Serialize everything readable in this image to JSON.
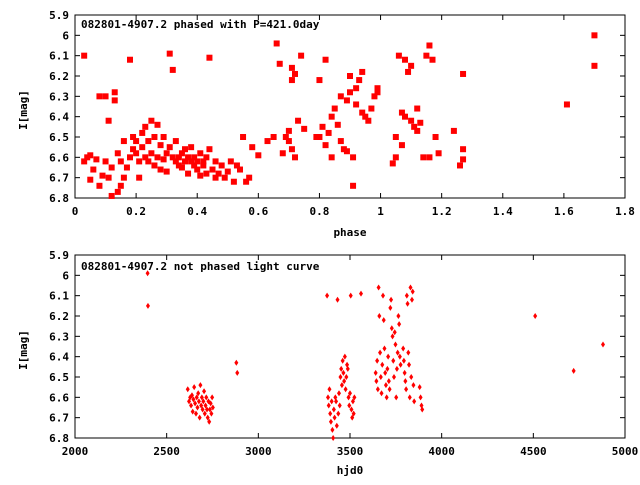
{
  "chart_data": [
    {
      "type": "scatter",
      "title": "082801-4907.2 phased with P=421.0day",
      "xlabel": "phase",
      "ylabel": "I[mag]",
      "xlim": [
        0,
        1.8
      ],
      "ylim": [
        6.8,
        5.9
      ],
      "y_inverted": true,
      "grid": false,
      "marker": "filled-square",
      "color": "#ff0000",
      "x_ticks": [
        "0",
        "0.2",
        "0.4",
        "0.6",
        "0.8",
        "1",
        "1.2",
        "1.4",
        "1.6",
        "1.8"
      ],
      "y_ticks": [
        "5.9",
        "6",
        "6.1",
        "6.2",
        "6.3",
        "6.4",
        "6.5",
        "6.6",
        "6.7",
        "6.8"
      ],
      "points": [
        [
          0.03,
          6.1
        ],
        [
          0.03,
          6.62
        ],
        [
          0.04,
          6.6
        ],
        [
          0.05,
          6.71
        ],
        [
          0.05,
          6.59
        ],
        [
          0.06,
          6.66
        ],
        [
          0.07,
          6.61
        ],
        [
          0.08,
          6.3
        ],
        [
          0.08,
          6.74
        ],
        [
          0.09,
          6.69
        ],
        [
          0.1,
          6.3
        ],
        [
          0.1,
          6.62
        ],
        [
          0.11,
          6.7
        ],
        [
          0.11,
          6.42
        ],
        [
          0.12,
          6.79
        ],
        [
          0.12,
          6.65
        ],
        [
          0.13,
          6.28
        ],
        [
          0.13,
          6.32
        ],
        [
          0.14,
          6.77
        ],
        [
          0.14,
          6.58
        ],
        [
          0.15,
          6.62
        ],
        [
          0.15,
          6.74
        ],
        [
          0.16,
          6.7
        ],
        [
          0.16,
          6.52
        ],
        [
          0.17,
          6.65
        ],
        [
          0.18,
          6.12
        ],
        [
          0.18,
          6.6
        ],
        [
          0.19,
          6.56
        ],
        [
          0.19,
          6.5
        ],
        [
          0.2,
          6.52
        ],
        [
          0.2,
          6.58
        ],
        [
          0.21,
          6.62
        ],
        [
          0.21,
          6.7
        ],
        [
          0.22,
          6.48
        ],
        [
          0.22,
          6.55
        ],
        [
          0.23,
          6.6
        ],
        [
          0.23,
          6.45
        ],
        [
          0.24,
          6.52
        ],
        [
          0.24,
          6.62
        ],
        [
          0.25,
          6.42
        ],
        [
          0.25,
          6.58
        ],
        [
          0.26,
          6.5
        ],
        [
          0.26,
          6.64
        ],
        [
          0.27,
          6.44
        ],
        [
          0.27,
          6.6
        ],
        [
          0.28,
          6.54
        ],
        [
          0.28,
          6.66
        ],
        [
          0.29,
          6.5
        ],
        [
          0.29,
          6.61
        ],
        [
          0.3,
          6.58
        ],
        [
          0.3,
          6.67
        ],
        [
          0.31,
          6.09
        ],
        [
          0.31,
          6.55
        ],
        [
          0.32,
          6.17
        ],
        [
          0.32,
          6.6
        ],
        [
          0.33,
          6.62
        ],
        [
          0.33,
          6.52
        ],
        [
          0.34,
          6.6
        ],
        [
          0.34,
          6.64
        ],
        [
          0.35,
          6.58
        ],
        [
          0.35,
          6.65
        ],
        [
          0.36,
          6.62
        ],
        [
          0.36,
          6.56
        ],
        [
          0.37,
          6.6
        ],
        [
          0.37,
          6.68
        ],
        [
          0.38,
          6.62
        ],
        [
          0.38,
          6.55
        ],
        [
          0.39,
          6.64
        ],
        [
          0.39,
          6.6
        ],
        [
          0.4,
          6.66
        ],
        [
          0.4,
          6.62
        ],
        [
          0.41,
          6.58
        ],
        [
          0.41,
          6.69
        ],
        [
          0.42,
          6.64
        ],
        [
          0.42,
          6.62
        ],
        [
          0.43,
          6.68
        ],
        [
          0.43,
          6.6
        ],
        [
          0.44,
          6.11
        ],
        [
          0.44,
          6.56
        ],
        [
          0.45,
          6.66
        ],
        [
          0.46,
          6.7
        ],
        [
          0.46,
          6.62
        ],
        [
          0.47,
          6.68
        ],
        [
          0.48,
          6.64
        ],
        [
          0.49,
          6.7
        ],
        [
          0.5,
          6.67
        ],
        [
          0.51,
          6.62
        ],
        [
          0.52,
          6.72
        ],
        [
          0.53,
          6.64
        ],
        [
          0.54,
          6.66
        ],
        [
          0.55,
          6.5
        ],
        [
          0.56,
          6.72
        ],
        [
          0.57,
          6.7
        ],
        [
          0.58,
          6.55
        ],
        [
          0.6,
          6.59
        ],
        [
          0.63,
          6.52
        ],
        [
          0.65,
          6.5
        ],
        [
          0.66,
          6.04
        ],
        [
          0.67,
          6.14
        ],
        [
          0.68,
          6.58
        ],
        [
          0.69,
          6.5
        ],
        [
          0.7,
          6.52
        ],
        [
          0.7,
          6.47
        ],
        [
          0.71,
          6.22
        ],
        [
          0.71,
          6.16
        ],
        [
          0.71,
          6.56
        ],
        [
          0.72,
          6.6
        ],
        [
          0.72,
          6.19
        ],
        [
          0.73,
          6.42
        ],
        [
          0.74,
          6.1
        ],
        [
          0.75,
          6.46
        ],
        [
          0.79,
          6.5
        ],
        [
          0.8,
          6.22
        ],
        [
          0.8,
          6.5
        ],
        [
          0.81,
          6.45
        ],
        [
          0.82,
          6.12
        ],
        [
          0.82,
          6.54
        ],
        [
          0.83,
          6.48
        ],
        [
          0.84,
          6.4
        ],
        [
          0.84,
          6.6
        ],
        [
          0.85,
          6.36
        ],
        [
          0.86,
          6.44
        ],
        [
          0.87,
          6.52
        ],
        [
          0.87,
          6.3
        ],
        [
          0.88,
          6.56
        ],
        [
          0.89,
          6.32
        ],
        [
          0.89,
          6.57
        ],
        [
          0.9,
          6.2
        ],
        [
          0.9,
          6.28
        ],
        [
          0.91,
          6.6
        ],
        [
          0.91,
          6.74
        ],
        [
          0.92,
          6.26
        ],
        [
          0.92,
          6.34
        ],
        [
          0.93,
          6.22
        ],
        [
          0.94,
          6.18
        ],
        [
          0.94,
          6.38
        ],
        [
          0.95,
          6.4
        ],
        [
          0.96,
          6.42
        ],
        [
          0.97,
          6.36
        ],
        [
          0.98,
          6.3
        ],
        [
          0.99,
          6.26
        ],
        [
          0.99,
          6.28
        ],
        [
          1.04,
          6.63
        ],
        [
          1.05,
          6.6
        ],
        [
          1.05,
          6.5
        ],
        [
          1.06,
          6.1
        ],
        [
          1.07,
          6.38
        ],
        [
          1.07,
          6.54
        ],
        [
          1.08,
          6.4
        ],
        [
          1.08,
          6.12
        ],
        [
          1.09,
          6.18
        ],
        [
          1.1,
          6.42
        ],
        [
          1.1,
          6.15
        ],
        [
          1.11,
          6.45
        ],
        [
          1.12,
          6.36
        ],
        [
          1.12,
          6.47
        ],
        [
          1.13,
          6.43
        ],
        [
          1.14,
          6.6
        ],
        [
          1.15,
          6.1
        ],
        [
          1.16,
          6.05
        ],
        [
          1.16,
          6.6
        ],
        [
          1.17,
          6.12
        ],
        [
          1.18,
          6.5
        ],
        [
          1.19,
          6.58
        ],
        [
          1.24,
          6.47
        ],
        [
          1.26,
          6.64
        ],
        [
          1.27,
          6.19
        ],
        [
          1.27,
          6.56
        ],
        [
          1.27,
          6.61
        ],
        [
          1.61,
          6.34
        ],
        [
          1.7,
          6.0
        ],
        [
          1.7,
          6.15
        ]
      ]
    },
    {
      "type": "scatter",
      "title": "082801-4907.2 not phased light curve",
      "xlabel": "hjd0",
      "ylabel": "I[mag]",
      "xlim": [
        2000,
        5000
      ],
      "ylim": [
        6.8,
        5.9
      ],
      "y_inverted": true,
      "grid": false,
      "marker": "diamond",
      "color": "#ff0000",
      "x_ticks": [
        "2000",
        "2500",
        "3000",
        "3500",
        "4000",
        "4500",
        "5000"
      ],
      "y_ticks": [
        "5.9",
        "6",
        "6.1",
        "6.2",
        "6.3",
        "6.4",
        "6.5",
        "6.6",
        "6.7",
        "6.8"
      ],
      "points": [
        [
          2396,
          5.99
        ],
        [
          2398,
          6.15
        ],
        [
          2615,
          6.56
        ],
        [
          2622,
          6.62
        ],
        [
          2628,
          6.6
        ],
        [
          2633,
          6.64
        ],
        [
          2638,
          6.59
        ],
        [
          2642,
          6.67
        ],
        [
          2646,
          6.61
        ],
        [
          2650,
          6.55
        ],
        [
          2655,
          6.63
        ],
        [
          2660,
          6.68
        ],
        [
          2664,
          6.6
        ],
        [
          2668,
          6.65
        ],
        [
          2672,
          6.58
        ],
        [
          2676,
          6.62
        ],
        [
          2680,
          6.7
        ],
        [
          2684,
          6.54
        ],
        [
          2688,
          6.64
        ],
        [
          2692,
          6.6
        ],
        [
          2696,
          6.66
        ],
        [
          2700,
          6.62
        ],
        [
          2704,
          6.57
        ],
        [
          2708,
          6.68
        ],
        [
          2712,
          6.64
        ],
        [
          2716,
          6.6
        ],
        [
          2720,
          6.66
        ],
        [
          2724,
          6.7
        ],
        [
          2728,
          6.62
        ],
        [
          2732,
          6.72
        ],
        [
          2736,
          6.66
        ],
        [
          2740,
          6.63
        ],
        [
          2744,
          6.68
        ],
        [
          2748,
          6.6
        ],
        [
          2752,
          6.65
        ],
        [
          2880,
          6.43
        ],
        [
          2885,
          6.48
        ],
        [
          3375,
          6.1
        ],
        [
          3380,
          6.6
        ],
        [
          3384,
          6.64
        ],
        [
          3388,
          6.56
        ],
        [
          3392,
          6.68
        ],
        [
          3396,
          6.72
        ],
        [
          3400,
          6.62
        ],
        [
          3404,
          6.76
        ],
        [
          3408,
          6.8
        ],
        [
          3412,
          6.66
        ],
        [
          3416,
          6.7
        ],
        [
          3420,
          6.6
        ],
        [
          3424,
          6.62
        ],
        [
          3428,
          6.74
        ],
        [
          3432,
          6.12
        ],
        [
          3436,
          6.68
        ],
        [
          3440,
          6.58
        ],
        [
          3444,
          6.64
        ],
        [
          3448,
          6.5
        ],
        [
          3452,
          6.46
        ],
        [
          3456,
          6.54
        ],
        [
          3460,
          6.42
        ],
        [
          3464,
          6.48
        ],
        [
          3468,
          6.52
        ],
        [
          3472,
          6.4
        ],
        [
          3476,
          6.56
        ],
        [
          3480,
          6.5
        ],
        [
          3484,
          6.44
        ],
        [
          3488,
          6.46
        ],
        [
          3492,
          6.6
        ],
        [
          3496,
          6.64
        ],
        [
          3500,
          6.58
        ],
        [
          3504,
          6.1
        ],
        [
          3508,
          6.66
        ],
        [
          3512,
          6.7
        ],
        [
          3516,
          6.62
        ],
        [
          3520,
          6.68
        ],
        [
          3524,
          6.6
        ],
        [
          3560,
          6.09
        ],
        [
          3640,
          6.48
        ],
        [
          3644,
          6.52
        ],
        [
          3648,
          6.42
        ],
        [
          3652,
          6.56
        ],
        [
          3656,
          6.06
        ],
        [
          3660,
          6.2
        ],
        [
          3664,
          6.38
        ],
        [
          3668,
          6.5
        ],
        [
          3672,
          6.58
        ],
        [
          3676,
          6.44
        ],
        [
          3680,
          6.1
        ],
        [
          3684,
          6.22
        ],
        [
          3688,
          6.36
        ],
        [
          3692,
          6.48
        ],
        [
          3696,
          6.54
        ],
        [
          3700,
          6.6
        ],
        [
          3704,
          6.46
        ],
        [
          3708,
          6.4
        ],
        [
          3712,
          6.52
        ],
        [
          3716,
          6.56
        ],
        [
          3720,
          6.16
        ],
        [
          3724,
          6.12
        ],
        [
          3728,
          6.26
        ],
        [
          3732,
          6.3
        ],
        [
          3736,
          6.42
        ],
        [
          3740,
          6.5
        ],
        [
          3744,
          6.28
        ],
        [
          3748,
          6.34
        ],
        [
          3752,
          6.6
        ],
        [
          3756,
          6.46
        ],
        [
          3760,
          6.38
        ],
        [
          3764,
          6.2
        ],
        [
          3768,
          6.24
        ],
        [
          3772,
          6.4
        ],
        [
          3776,
          6.44
        ],
        [
          3790,
          6.36
        ],
        [
          3794,
          6.42
        ],
        [
          3798,
          6.48
        ],
        [
          3802,
          6.52
        ],
        [
          3806,
          6.56
        ],
        [
          3810,
          6.1
        ],
        [
          3814,
          6.14
        ],
        [
          3818,
          6.38
        ],
        [
          3822,
          6.44
        ],
        [
          3826,
          6.6
        ],
        [
          3830,
          6.06
        ],
        [
          3834,
          6.5
        ],
        [
          3838,
          6.12
        ],
        [
          3842,
          6.08
        ],
        [
          3846,
          6.54
        ],
        [
          3850,
          6.62
        ],
        [
          3880,
          6.55
        ],
        [
          3885,
          6.6
        ],
        [
          3890,
          6.64
        ],
        [
          3894,
          6.66
        ],
        [
          4510,
          6.2
        ],
        [
          4720,
          6.47
        ],
        [
          4880,
          6.34
        ]
      ]
    }
  ]
}
